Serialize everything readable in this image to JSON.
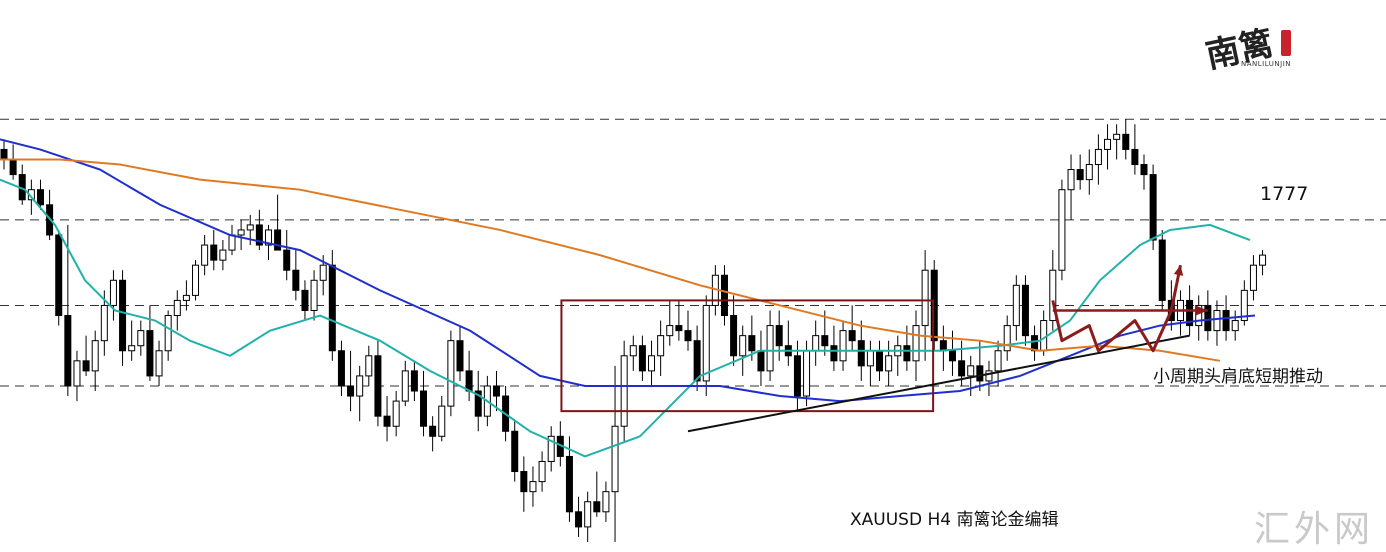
{
  "chart_data": {
    "type": "candlestick",
    "symbol": "XAUUSD",
    "timeframe": "H4",
    "ylim": [
      1712,
      1803
    ],
    "resistance_levels": [
      1796,
      1776,
      1759,
      1743
    ],
    "candles_ohlc": [
      [
        1790,
        1792,
        1786,
        1788
      ],
      [
        1788,
        1791,
        1784,
        1785
      ],
      [
        1785,
        1787,
        1779,
        1780
      ],
      [
        1780,
        1784,
        1777,
        1782
      ],
      [
        1782,
        1784,
        1778,
        1779
      ],
      [
        1779,
        1782,
        1772,
        1773
      ],
      [
        1773,
        1774,
        1755,
        1757
      ],
      [
        1757,
        1775,
        1741,
        1743
      ],
      [
        1743,
        1750,
        1740,
        1748
      ],
      [
        1748,
        1753,
        1745,
        1746
      ],
      [
        1746,
        1754,
        1742,
        1752
      ],
      [
        1752,
        1762,
        1749,
        1759
      ],
      [
        1759,
        1766,
        1756,
        1764
      ],
      [
        1764,
        1766,
        1747,
        1750
      ],
      [
        1750,
        1756,
        1748,
        1751
      ],
      [
        1751,
        1756,
        1749,
        1754
      ],
      [
        1754,
        1759,
        1744,
        1745
      ],
      [
        1745,
        1752,
        1743,
        1750
      ],
      [
        1750,
        1758,
        1748,
        1757
      ],
      [
        1757,
        1762,
        1754,
        1760
      ],
      [
        1760,
        1764,
        1758,
        1761
      ],
      [
        1761,
        1768,
        1760,
        1767
      ],
      [
        1767,
        1773,
        1765,
        1771
      ],
      [
        1771,
        1774,
        1766,
        1768
      ],
      [
        1768,
        1772,
        1766,
        1770
      ],
      [
        1770,
        1775,
        1769,
        1773
      ],
      [
        1773,
        1776,
        1770,
        1774
      ],
      [
        1774,
        1777,
        1771,
        1775
      ],
      [
        1775,
        1778,
        1770,
        1771
      ],
      [
        1771,
        1775,
        1768,
        1774
      ],
      [
        1774,
        1781,
        1772,
        1770
      ],
      [
        1770,
        1774,
        1764,
        1766
      ],
      [
        1766,
        1770,
        1760,
        1762
      ],
      [
        1762,
        1764,
        1756,
        1758
      ],
      [
        1758,
        1766,
        1756,
        1764
      ],
      [
        1764,
        1769,
        1761,
        1767
      ],
      [
        1767,
        1770,
        1748,
        1750
      ],
      [
        1750,
        1752,
        1741,
        1743
      ],
      [
        1743,
        1750,
        1738,
        1741
      ],
      [
        1741,
        1747,
        1736,
        1745
      ],
      [
        1745,
        1751,
        1743,
        1749
      ],
      [
        1749,
        1752,
        1735,
        1737
      ],
      [
        1737,
        1741,
        1732,
        1735
      ],
      [
        1735,
        1742,
        1733,
        1740
      ],
      [
        1740,
        1748,
        1739,
        1746
      ],
      [
        1746,
        1748,
        1740,
        1742
      ],
      [
        1742,
        1746,
        1733,
        1735
      ],
      [
        1735,
        1737,
        1730,
        1733
      ],
      [
        1733,
        1741,
        1732,
        1739
      ],
      [
        1739,
        1754,
        1737,
        1752
      ],
      [
        1752,
        1755,
        1744,
        1746
      ],
      [
        1746,
        1750,
        1740,
        1742
      ],
      [
        1742,
        1746,
        1734,
        1737
      ],
      [
        1737,
        1745,
        1735,
        1743
      ],
      [
        1743,
        1746,
        1738,
        1741
      ],
      [
        1741,
        1743,
        1732,
        1734
      ],
      [
        1734,
        1736,
        1724,
        1726
      ],
      [
        1726,
        1729,
        1718,
        1722
      ],
      [
        1722,
        1727,
        1719,
        1724
      ],
      [
        1724,
        1730,
        1722,
        1728
      ],
      [
        1728,
        1735,
        1726,
        1733
      ],
      [
        1733,
        1736,
        1727,
        1729
      ],
      [
        1729,
        1733,
        1716,
        1718
      ],
      [
        1718,
        1721,
        1713,
        1715
      ],
      [
        1715,
        1722,
        1712,
        1720
      ],
      [
        1720,
        1726,
        1717,
        1718
      ],
      [
        1718,
        1724,
        1716,
        1722
      ],
      [
        1722,
        1747,
        1712,
        1735
      ],
      [
        1735,
        1752,
        1732,
        1749
      ],
      [
        1749,
        1753,
        1746,
        1751
      ],
      [
        1751,
        1753,
        1744,
        1746
      ],
      [
        1746,
        1752,
        1743,
        1749
      ],
      [
        1749,
        1756,
        1745,
        1753
      ],
      [
        1753,
        1760,
        1751,
        1755
      ],
      [
        1755,
        1760,
        1752,
        1754
      ],
      [
        1754,
        1758,
        1750,
        1752
      ],
      [
        1752,
        1755,
        1742,
        1744
      ],
      [
        1744,
        1761,
        1741,
        1759
      ],
      [
        1759,
        1767,
        1757,
        1765
      ],
      [
        1765,
        1767,
        1755,
        1757
      ],
      [
        1757,
        1761,
        1747,
        1749
      ],
      [
        1749,
        1755,
        1745,
        1753
      ],
      [
        1753,
        1757,
        1748,
        1750
      ],
      [
        1750,
        1754,
        1743,
        1746
      ],
      [
        1746,
        1758,
        1744,
        1755
      ],
      [
        1755,
        1758,
        1748,
        1751
      ],
      [
        1751,
        1756,
        1747,
        1749
      ],
      [
        1749,
        1752,
        1738,
        1741
      ],
      [
        1741,
        1752,
        1739,
        1750
      ],
      [
        1750,
        1756,
        1747,
        1753
      ],
      [
        1753,
        1758,
        1749,
        1751
      ],
      [
        1751,
        1755,
        1746,
        1748
      ],
      [
        1748,
        1756,
        1746,
        1754
      ],
      [
        1754,
        1759,
        1750,
        1752
      ],
      [
        1752,
        1756,
        1744,
        1747
      ],
      [
        1747,
        1752,
        1743,
        1750
      ],
      [
        1750,
        1752,
        1744,
        1746
      ],
      [
        1746,
        1752,
        1743,
        1749
      ],
      [
        1749,
        1753,
        1745,
        1751
      ],
      [
        1751,
        1755,
        1746,
        1748
      ],
      [
        1748,
        1758,
        1744,
        1755
      ],
      [
        1755,
        1770,
        1748,
        1766
      ],
      [
        1766,
        1768,
        1750,
        1752
      ],
      [
        1752,
        1755,
        1746,
        1750
      ],
      [
        1750,
        1754,
        1745,
        1748
      ],
      [
        1748,
        1752,
        1743,
        1745
      ],
      [
        1745,
        1749,
        1741,
        1747
      ],
      [
        1747,
        1752,
        1742,
        1744
      ],
      [
        1744,
        1748,
        1741,
        1746
      ],
      [
        1746,
        1752,
        1743,
        1750
      ],
      [
        1750,
        1757,
        1748,
        1755
      ],
      [
        1755,
        1765,
        1752,
        1763
      ],
      [
        1763,
        1765,
        1751,
        1753
      ],
      [
        1753,
        1755,
        1748,
        1750
      ],
      [
        1750,
        1758,
        1749,
        1756
      ],
      [
        1756,
        1770,
        1754,
        1766
      ],
      [
        1766,
        1784,
        1764,
        1782
      ],
      [
        1782,
        1789,
        1776,
        1786
      ],
      [
        1786,
        1789,
        1782,
        1784
      ],
      [
        1784,
        1790,
        1781,
        1787
      ],
      [
        1787,
        1793,
        1783,
        1790
      ],
      [
        1790,
        1795,
        1786,
        1792
      ],
      [
        1792,
        1795,
        1788,
        1793
      ],
      [
        1793,
        1796,
        1788,
        1790
      ],
      [
        1790,
        1795,
        1785,
        1787
      ],
      [
        1787,
        1789,
        1782,
        1785
      ],
      [
        1785,
        1787,
        1770,
        1772
      ],
      [
        1772,
        1774,
        1758,
        1760
      ],
      [
        1760,
        1764,
        1754,
        1756
      ],
      [
        1756,
        1762,
        1753,
        1760
      ],
      [
        1760,
        1763,
        1753,
        1755
      ],
      [
        1755,
        1761,
        1752,
        1759
      ],
      [
        1759,
        1762,
        1752,
        1754
      ],
      [
        1754,
        1760,
        1751,
        1758
      ],
      [
        1758,
        1761,
        1752,
        1754
      ],
      [
        1754,
        1758,
        1752,
        1756
      ],
      [
        1756,
        1764,
        1755,
        1762
      ],
      [
        1762,
        1769,
        1760,
        1767
      ],
      [
        1767,
        1770,
        1765,
        1769
      ]
    ],
    "moving_averages": [
      {
        "color": "#20b2aa",
        "values": [
          [
            0,
            1784
          ],
          [
            25,
            1782
          ],
          [
            55,
            1775
          ],
          [
            85,
            1764
          ],
          [
            115,
            1758
          ],
          [
            155,
            1756
          ],
          [
            190,
            1752
          ],
          [
            230,
            1749
          ],
          [
            270,
            1754
          ],
          [
            320,
            1757
          ],
          [
            380,
            1752
          ],
          [
            430,
            1746
          ],
          [
            480,
            1741
          ],
          [
            530,
            1734
          ],
          [
            585,
            1729
          ],
          [
            640,
            1733
          ],
          [
            700,
            1745
          ],
          [
            760,
            1750
          ],
          [
            820,
            1750
          ],
          [
            880,
            1750
          ],
          [
            940,
            1750
          ],
          [
            1000,
            1751
          ],
          [
            1040,
            1752
          ],
          [
            1070,
            1756
          ],
          [
            1100,
            1764
          ],
          [
            1140,
            1771
          ],
          [
            1170,
            1774
          ],
          [
            1210,
            1775
          ],
          [
            1250,
            1772
          ]
        ]
      },
      {
        "color": "#1f2ecf",
        "values": [
          [
            0,
            1792
          ],
          [
            40,
            1790
          ],
          [
            100,
            1786
          ],
          [
            160,
            1779
          ],
          [
            230,
            1773
          ],
          [
            300,
            1770
          ],
          [
            380,
            1762
          ],
          [
            470,
            1754
          ],
          [
            540,
            1745
          ],
          [
            585,
            1743
          ],
          [
            660,
            1743
          ],
          [
            720,
            1743
          ],
          [
            780,
            1741
          ],
          [
            840,
            1740
          ],
          [
            900,
            1741
          ],
          [
            960,
            1742
          ],
          [
            1020,
            1745
          ],
          [
            1070,
            1749
          ],
          [
            1120,
            1753
          ],
          [
            1160,
            1755
          ],
          [
            1200,
            1756
          ],
          [
            1255,
            1757
          ]
        ]
      },
      {
        "color": "#e07a22",
        "values": [
          [
            0,
            1788
          ],
          [
            60,
            1788
          ],
          [
            120,
            1787
          ],
          [
            200,
            1784
          ],
          [
            300,
            1782
          ],
          [
            400,
            1778
          ],
          [
            500,
            1774
          ],
          [
            600,
            1769
          ],
          [
            700,
            1763
          ],
          [
            780,
            1759
          ],
          [
            860,
            1755
          ],
          [
            920,
            1753
          ],
          [
            980,
            1752
          ],
          [
            1040,
            1750
          ],
          [
            1100,
            1751
          ],
          [
            1160,
            1750
          ],
          [
            1220,
            1748
          ]
        ]
      }
    ],
    "annotations": [
      {
        "type": "rect",
        "bar_range": [
          62,
          101
        ],
        "price_range": [
          1738,
          1760
        ],
        "color": "#7a1515"
      },
      {
        "type": "trendline",
        "from": [
          75,
          1734
        ],
        "to": [
          130,
          1753
        ],
        "color": "#111111"
      },
      {
        "type": "neckline",
        "from": [
          115,
          1758
        ],
        "to": [
          132,
          1758
        ],
        "color": "#8b1c1c"
      },
      {
        "type": "path",
        "points": [
          [
            115,
            1760
          ],
          [
            116,
            1752
          ],
          [
            119,
            1755
          ],
          [
            120,
            1750
          ],
          [
            122,
            1753
          ],
          [
            124,
            1756
          ],
          [
            126,
            1750
          ],
          [
            128,
            1758
          ],
          [
            129,
            1767
          ]
        ],
        "color": "#8b1c1c"
      }
    ],
    "price_label": "1777",
    "pattern_label": "小周期头肩底短期推动",
    "caption": "XAUUSD  H4  南篱论金编辑"
  },
  "watermark": "汇外网",
  "logo": {
    "main": "南篱",
    "sub": "NANLILUNJIN"
  }
}
